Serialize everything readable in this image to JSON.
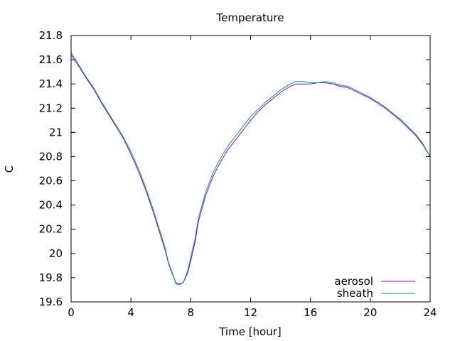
{
  "chart_data": {
    "type": "line",
    "title": "Temperature",
    "xlabel": "Time [hour]",
    "ylabel": "C",
    "xlim": [
      0,
      24
    ],
    "ylim": [
      19.6,
      21.8
    ],
    "x_ticks": [
      0,
      4,
      8,
      12,
      16,
      20,
      24
    ],
    "y_ticks": [
      19.6,
      19.8,
      20,
      20.2,
      20.4,
      20.6,
      20.8,
      21,
      21.2,
      21.4,
      21.6,
      21.8
    ],
    "y_tick_labels": [
      "19.6",
      "19.8",
      "20",
      "20.2",
      "20.4",
      "20.6",
      "20.8",
      "21",
      "21.2",
      "21.4",
      "21.6",
      "21.8"
    ],
    "grid": false,
    "legend_position": "bottom-right",
    "series": [
      {
        "name": "aerosol",
        "color": "#9400d3",
        "x": [
          0,
          0.5,
          1,
          1.5,
          2,
          2.5,
          3,
          3.5,
          4,
          4.5,
          5,
          5.5,
          6,
          6.3,
          6.5,
          6.8,
          7,
          7.2,
          7.5,
          7.8,
          8,
          8.3,
          8.5,
          9,
          9.5,
          10,
          10.5,
          11,
          11.5,
          12,
          12.5,
          13,
          13.5,
          14,
          14.5,
          15,
          15.5,
          16,
          16.5,
          17,
          17.5,
          18,
          18.5,
          19,
          19.5,
          20,
          20.5,
          21,
          21.5,
          22,
          22.5,
          23,
          23.5,
          24
        ],
        "y": [
          21.64,
          21.55,
          21.45,
          21.36,
          21.25,
          21.15,
          21.05,
          20.95,
          20.82,
          20.68,
          20.52,
          20.34,
          20.14,
          20.02,
          19.92,
          19.82,
          19.76,
          19.75,
          19.76,
          19.84,
          19.94,
          20.1,
          20.26,
          20.48,
          20.64,
          20.76,
          20.86,
          20.94,
          21.02,
          21.1,
          21.17,
          21.23,
          21.28,
          21.33,
          21.37,
          21.4,
          21.4,
          21.4,
          21.41,
          21.41,
          21.4,
          21.38,
          21.37,
          21.34,
          21.31,
          21.28,
          21.24,
          21.2,
          21.15,
          21.1,
          21.04,
          20.98,
          20.9,
          20.8
        ]
      },
      {
        "name": "sheath",
        "color": "#009e73",
        "x": [
          0,
          0.5,
          1,
          1.5,
          2,
          2.5,
          3,
          3.5,
          4,
          4.5,
          5,
          5.5,
          6,
          6.3,
          6.5,
          6.8,
          7,
          7.2,
          7.5,
          7.8,
          8,
          8.3,
          8.5,
          9,
          9.5,
          10,
          10.5,
          11,
          11.5,
          12,
          12.5,
          13,
          13.5,
          14,
          14.5,
          15,
          15.5,
          16,
          16.5,
          17,
          17.5,
          18,
          18.5,
          19,
          19.5,
          20,
          20.5,
          21,
          21.5,
          22,
          22.5,
          23,
          23.5,
          24
        ],
        "y": [
          21.66,
          21.56,
          21.46,
          21.37,
          21.26,
          21.16,
          21.06,
          20.96,
          20.84,
          20.7,
          20.54,
          20.36,
          20.16,
          20.04,
          19.93,
          19.83,
          19.75,
          19.74,
          19.76,
          19.86,
          19.97,
          20.13,
          20.29,
          20.51,
          20.67,
          20.79,
          20.89,
          20.97,
          21.05,
          21.13,
          21.19,
          21.25,
          21.3,
          21.35,
          21.39,
          21.42,
          21.42,
          21.41,
          21.41,
          21.42,
          21.41,
          21.39,
          21.38,
          21.35,
          21.32,
          21.29,
          21.25,
          21.21,
          21.16,
          21.11,
          21.05,
          20.99,
          20.91,
          20.8
        ]
      }
    ]
  }
}
